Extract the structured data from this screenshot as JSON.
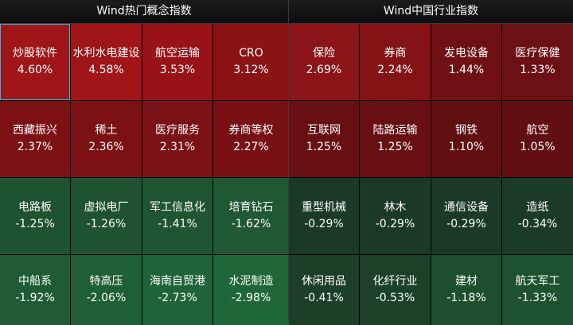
{
  "left_panel": {
    "title": "Wind热门概念指数",
    "tiles": [
      {
        "name": "炒股软件",
        "pct": "4.60%",
        "color": "#a01517"
      },
      {
        "name": "水利水电建设",
        "pct": "4.58%",
        "color": "#a01517"
      },
      {
        "name": "航空运输",
        "pct": "3.53%",
        "color": "#971317"
      },
      {
        "name": "CRO",
        "pct": "3.12%",
        "color": "#8b1316"
      },
      {
        "name": "西藏振兴",
        "pct": "2.37%",
        "color": "#7c1114"
      },
      {
        "name": "稀土",
        "pct": "2.36%",
        "color": "#7c1114"
      },
      {
        "name": "医疗服务",
        "pct": "2.31%",
        "color": "#7a1114"
      },
      {
        "name": "券商等权",
        "pct": "2.27%",
        "color": "#781114"
      },
      {
        "name": "电路板",
        "pct": "-1.25%",
        "color": "#1e5230"
      },
      {
        "name": "虚拟电厂",
        "pct": "-1.26%",
        "color": "#1e5230"
      },
      {
        "name": "军工信息化",
        "pct": "-1.41%",
        "color": "#1f5532"
      },
      {
        "name": "培育钻石",
        "pct": "-1.62%",
        "color": "#1f5833"
      },
      {
        "name": "中船系",
        "pct": "-1.92%",
        "color": "#1f5c35"
      },
      {
        "name": "特高压",
        "pct": "-2.06%",
        "color": "#1f5f36"
      },
      {
        "name": "海南自贸港",
        "pct": "-2.73%",
        "color": "#1f6438"
      },
      {
        "name": "水泥制造",
        "pct": "-2.98%",
        "color": "#1f6739"
      }
    ]
  },
  "right_panel": {
    "title": "Wind中国行业指数",
    "tiles": [
      {
        "name": "保险",
        "pct": "2.69%",
        "color": "#8a1417"
      },
      {
        "name": "券商",
        "pct": "2.24%",
        "color": "#851316"
      },
      {
        "name": "发电设备",
        "pct": "1.44%",
        "color": "#6f1013"
      },
      {
        "name": "医疗保健",
        "pct": "1.33%",
        "color": "#6b1013"
      },
      {
        "name": "互联网",
        "pct": "1.25%",
        "color": "#680f12"
      },
      {
        "name": "陆路运输",
        "pct": "1.25%",
        "color": "#680f12"
      },
      {
        "name": "钢铁",
        "pct": "1.10%",
        "color": "#620f12"
      },
      {
        "name": "航空",
        "pct": "1.05%",
        "color": "#600e11"
      },
      {
        "name": "重型机械",
        "pct": "-0.29%",
        "color": "#1a3a25"
      },
      {
        "name": "林木",
        "pct": "-0.29%",
        "color": "#1a3a25"
      },
      {
        "name": "通信设备",
        "pct": "-0.29%",
        "color": "#1a3a25"
      },
      {
        "name": "造纸",
        "pct": "-0.34%",
        "color": "#1a3c26"
      },
      {
        "name": "休闲用品",
        "pct": "-0.41%",
        "color": "#1b3f27"
      },
      {
        "name": "化纤行业",
        "pct": "-0.53%",
        "color": "#1b4229"
      },
      {
        "name": "建材",
        "pct": "-1.18%",
        "color": "#1d4f2e"
      },
      {
        "name": "航天军工",
        "pct": "-1.33%",
        "color": "#1e5130"
      }
    ]
  }
}
